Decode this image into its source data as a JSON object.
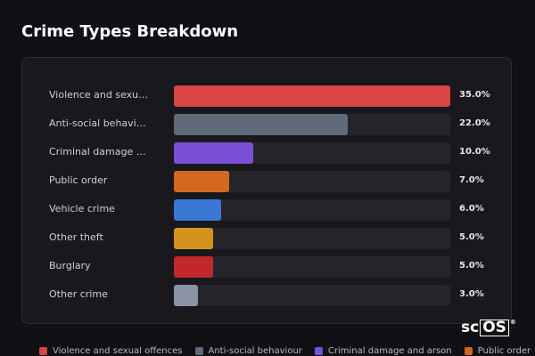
{
  "chart_data": {
    "type": "bar",
    "orientation": "horizontal",
    "title": "Crime Types Breakdown",
    "categories": [
      "Violence and sexual offences",
      "Anti-social behaviour",
      "Criminal damage and arson",
      "Public order",
      "Vehicle crime",
      "Other theft",
      "Burglary",
      "Other crime"
    ],
    "values": [
      35.0,
      22.0,
      10.0,
      7.0,
      6.0,
      5.0,
      5.0,
      3.0
    ],
    "value_labels": [
      "35.0%",
      "22.0%",
      "10.0%",
      "7.0%",
      "6.0%",
      "5.0%",
      "5.0%",
      "3.0%"
    ],
    "colors": [
      "#d94444",
      "#5f6b7b",
      "#7a4fd8",
      "#d2691e",
      "#3b78d6",
      "#d4921a",
      "#c0282c",
      "#8a94a6"
    ],
    "xlim": [
      0,
      35
    ]
  },
  "logo": {
    "prefix": "sc",
    "boxed": "OS",
    "mark": "®"
  }
}
